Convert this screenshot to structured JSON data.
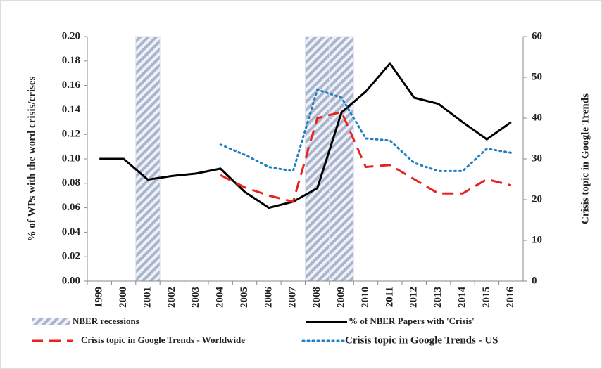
{
  "chart_data": {
    "type": "line",
    "categories": [
      "1999",
      "2000",
      "2001",
      "2002",
      "2003",
      "2004",
      "2005",
      "2006",
      "2007",
      "2008",
      "2009",
      "2010",
      "2011",
      "2012",
      "2013",
      "2014",
      "2015",
      "2016"
    ],
    "ylabel": "% of WPs with the word crisis/crises",
    "y2label": "Crisis topic in Google Trends",
    "ylim": [
      0,
      0.2
    ],
    "yticks": [
      {
        "value": 0,
        "label": "0.00"
      },
      {
        "value": 0.02,
        "label": "0.02"
      },
      {
        "value": 0.04,
        "label": "0.04"
      },
      {
        "value": 0.06,
        "label": "0.06"
      },
      {
        "value": 0.08,
        "label": "0.08"
      },
      {
        "value": 0.1,
        "label": "0.10"
      },
      {
        "value": 0.12,
        "label": "0.12"
      },
      {
        "value": 0.14,
        "label": "0.14"
      },
      {
        "value": 0.16,
        "label": "0.16"
      },
      {
        "value": 0.18,
        "label": "0.18"
      },
      {
        "value": 0.2,
        "label": "0.20"
      }
    ],
    "y2lim": [
      0,
      60
    ],
    "y2ticks": [
      0,
      10,
      20,
      30,
      40,
      50,
      60
    ],
    "series": [
      {
        "name": "NBER recessions",
        "type": "bar",
        "color": "#aab4cc",
        "axis": "y",
        "values": [
          null,
          null,
          0.2,
          null,
          null,
          null,
          null,
          null,
          null,
          0.2,
          0.2,
          null,
          null,
          null,
          null,
          null,
          null,
          null
        ]
      },
      {
        "name": "% of NBER Papers with 'Crisis'",
        "type": "line",
        "color": "#000000",
        "dash": "solid",
        "axis": "y",
        "values": [
          0.1,
          0.1,
          0.083,
          0.086,
          0.088,
          0.092,
          0.073,
          0.06,
          0.065,
          0.076,
          0.138,
          0.155,
          0.178,
          0.15,
          0.145,
          0.13,
          0.116,
          0.13
        ]
      },
      {
        "name": "Crisis topic in Google Trends -  Worldwide",
        "type": "line",
        "color": "#e8231f",
        "dash": "dashed",
        "axis": "y2",
        "values": [
          null,
          null,
          null,
          null,
          null,
          26,
          23,
          21,
          19.5,
          40,
          41.5,
          28,
          28.5,
          25,
          21.5,
          21.5,
          25,
          23.5
        ]
      },
      {
        "name": "Crisis topic in Google Trends -  US",
        "type": "line",
        "color": "#1f7fc0",
        "dash": "dotted",
        "axis": "y2",
        "values": [
          null,
          null,
          null,
          null,
          null,
          33.5,
          31,
          28,
          27,
          47,
          45,
          35,
          34.5,
          29,
          27,
          27,
          32.5,
          31.5
        ]
      }
    ]
  }
}
